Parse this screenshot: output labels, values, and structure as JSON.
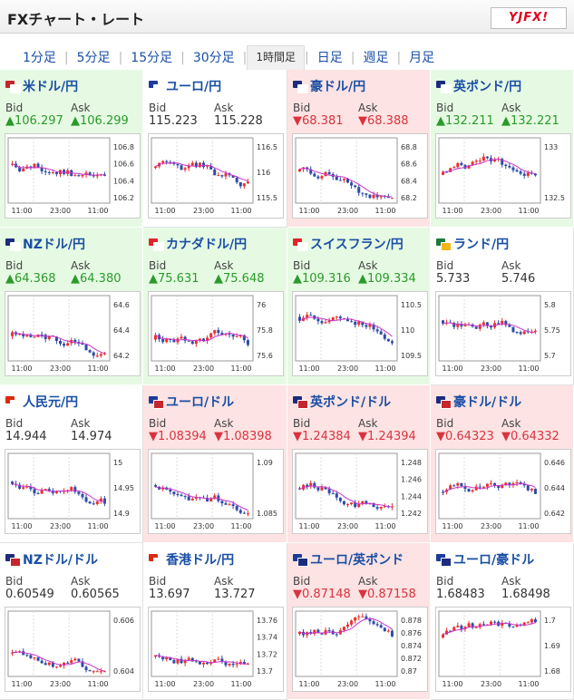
{
  "header": {
    "title": "FXチャート・レート",
    "logo": "YJFX!"
  },
  "tabs": [
    {
      "label": "1分足",
      "active": false
    },
    {
      "label": "5分足",
      "active": false
    },
    {
      "label": "15分足",
      "active": false
    },
    {
      "label": "30分足",
      "active": false
    },
    {
      "label": "1時間足",
      "active": true
    },
    {
      "label": "日足",
      "active": false
    },
    {
      "label": "週足",
      "active": false
    },
    {
      "label": "月足",
      "active": false
    }
  ],
  "labels": {
    "bid": "Bid",
    "ask": "Ask"
  },
  "colors": {
    "up_bg": "#e6fae3",
    "down_bg": "#fde3e3",
    "up_text": "#2a9a2a",
    "down_text": "#d9333f",
    "link": "#1a4fa5",
    "candle_up": "#e8322f",
    "candle_down": "#2f4ba8",
    "ma_line": "#cc33cc"
  },
  "cards": [
    {
      "pair": "米ドル/円",
      "state": "up",
      "bid": "▲106.297",
      "ask": "▲106.299",
      "flag_icon": "us-jp-flag-icon",
      "flag_colors": [
        "#c4262e",
        "#ffffff"
      ],
      "y_ticks": [
        "106.8",
        "106.6",
        "106.4",
        "106.2"
      ],
      "x_ticks": [
        "11:00",
        "23:00",
        "11:00"
      ]
    },
    {
      "pair": "ユーロ/円",
      "state": "flat",
      "bid": "115.223",
      "ask": "115.228",
      "flag_icon": "eu-jp-flag-icon",
      "flag_colors": [
        "#1c3c9c",
        "#ffffff"
      ],
      "y_ticks": [
        "116.5",
        "116",
        "115.5"
      ],
      "x_ticks": [
        "11:00",
        "23:00",
        "11:00"
      ]
    },
    {
      "pair": "豪ドル/円",
      "state": "down",
      "bid": "▼68.381",
      "ask": "▼68.388",
      "flag_icon": "au-jp-flag-icon",
      "flag_colors": [
        "#1c2c7c",
        "#ffffff"
      ],
      "y_ticks": [
        "68.8",
        "68.6",
        "68.4",
        "68.2"
      ],
      "x_ticks": [
        "11:00",
        "23:00",
        "11:00"
      ]
    },
    {
      "pair": "英ポンド/円",
      "state": "up",
      "bid": "▲132.211",
      "ask": "▲132.221",
      "flag_icon": "gb-jp-flag-icon",
      "flag_colors": [
        "#1c2c7c",
        "#ffffff"
      ],
      "y_ticks": [
        "133",
        "132.5"
      ],
      "x_ticks": [
        "11:00",
        "23:00",
        "11:00"
      ]
    },
    {
      "pair": "NZドル/円",
      "state": "up",
      "bid": "▲64.368",
      "ask": "▲64.380",
      "flag_icon": "nz-jp-flag-icon",
      "flag_colors": [
        "#1c2c7c",
        "#ffffff"
      ],
      "y_ticks": [
        "64.6",
        "64.4",
        "64.2"
      ],
      "x_ticks": [
        "11:00",
        "23:00",
        "11:00"
      ]
    },
    {
      "pair": "カナダドル/円",
      "state": "up",
      "bid": "▲75.631",
      "ask": "▲75.648",
      "flag_icon": "ca-jp-flag-icon",
      "flag_colors": [
        "#e0242c",
        "#ffffff"
      ],
      "y_ticks": [
        "76",
        "75.8",
        "75.6"
      ],
      "x_ticks": [
        "11:00",
        "23:00",
        "11:00"
      ]
    },
    {
      "pair": "スイスフラン/円",
      "state": "up",
      "bid": "▲109.316",
      "ask": "▲109.334",
      "flag_icon": "ch-jp-flag-icon",
      "flag_colors": [
        "#e0242c",
        "#ffffff"
      ],
      "y_ticks": [
        "110.5",
        "110",
        "109.5"
      ],
      "x_ticks": [
        "11:00",
        "23:00",
        "11:00"
      ]
    },
    {
      "pair": "ランド/円",
      "state": "flat",
      "bid": "5.733",
      "ask": "5.746",
      "flag_icon": "za-jp-flag-icon",
      "flag_colors": [
        "#1d7a3c",
        "#f2b61b"
      ],
      "y_ticks": [
        "5.8",
        "5.75",
        "5.7"
      ],
      "x_ticks": [
        "11:00",
        "23:00",
        "11:00"
      ]
    },
    {
      "pair": "人民元/円",
      "state": "flat",
      "bid": "14.944",
      "ask": "14.974",
      "flag_icon": "cn-jp-flag-icon",
      "flag_colors": [
        "#de2910",
        "#ffffff"
      ],
      "y_ticks": [
        "15",
        "14.95",
        "14.9"
      ],
      "x_ticks": [
        "11:00",
        "23:00",
        "11:00"
      ]
    },
    {
      "pair": "ユーロ/ドル",
      "state": "down",
      "bid": "▼1.08394",
      "ask": "▼1.08398",
      "flag_icon": "eu-us-flag-icon",
      "flag_colors": [
        "#1c3c9c",
        "#c4262e"
      ],
      "y_ticks": [
        "1.09",
        "1.085"
      ],
      "x_ticks": [
        "11:00",
        "23:00",
        "11:00"
      ]
    },
    {
      "pair": "英ポンド/ドル",
      "state": "down",
      "bid": "▼1.24384",
      "ask": "▼1.24394",
      "flag_icon": "gb-us-flag-icon",
      "flag_colors": [
        "#1c2c7c",
        "#c4262e"
      ],
      "y_ticks": [
        "1.248",
        "1.246",
        "1.244",
        "1.242"
      ],
      "x_ticks": [
        "11:00",
        "23:00",
        "11:00"
      ]
    },
    {
      "pair": "豪ドル/ドル",
      "state": "down",
      "bid": "▼0.64323",
      "ask": "▼0.64332",
      "flag_icon": "au-us-flag-icon",
      "flag_colors": [
        "#1c2c7c",
        "#c4262e"
      ],
      "y_ticks": [
        "0.646",
        "0.644",
        "0.642"
      ],
      "x_ticks": [
        "11:00",
        "23:00",
        "11:00"
      ]
    },
    {
      "pair": "NZドル/ドル",
      "state": "flat",
      "bid": "0.60549",
      "ask": "0.60565",
      "flag_icon": "nz-us-flag-icon",
      "flag_colors": [
        "#1c2c7c",
        "#c4262e"
      ],
      "y_ticks": [
        "0.606",
        "0.604"
      ],
      "x_ticks": [
        "11:00",
        "23:00",
        "11:00"
      ]
    },
    {
      "pair": "香港ドル/円",
      "state": "flat",
      "bid": "13.697",
      "ask": "13.727",
      "flag_icon": "hk-jp-flag-icon",
      "flag_colors": [
        "#de2910",
        "#ffffff"
      ],
      "y_ticks": [
        "13.76",
        "13.74",
        "13.72",
        "13.7"
      ],
      "x_ticks": [
        "11:00",
        "23:00",
        "11:00"
      ]
    },
    {
      "pair": "ユーロ/英ポンド",
      "state": "down",
      "bid": "▼0.87148",
      "ask": "▼0.87158",
      "flag_icon": "eu-gb-flag-icon",
      "flag_colors": [
        "#1c3c9c",
        "#1c2c7c"
      ],
      "y_ticks": [
        "0.878",
        "0.876",
        "0.874",
        "0.872",
        "0.87"
      ],
      "x_ticks": [
        "11:00",
        "23:00",
        "11:00"
      ]
    },
    {
      "pair": "ユーロ/豪ドル",
      "state": "flat",
      "bid": "1.68483",
      "ask": "1.68498",
      "flag_icon": "eu-au-flag-icon",
      "flag_colors": [
        "#1c3c9c",
        "#1c2c7c"
      ],
      "y_ticks": [
        "1.7",
        "1.69",
        "1.68"
      ],
      "x_ticks": [
        "11:00",
        "23:00",
        "11:00"
      ]
    }
  ]
}
